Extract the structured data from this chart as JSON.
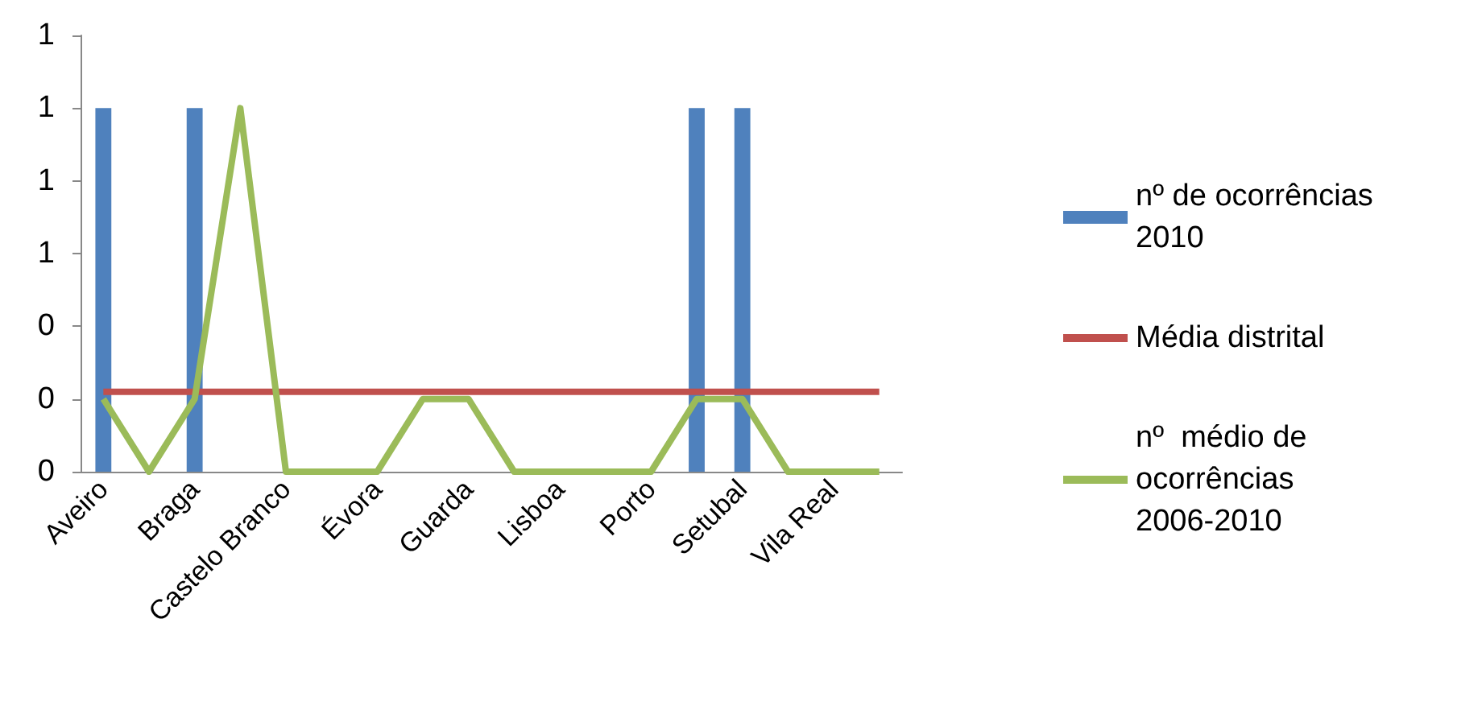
{
  "chart_data": {
    "type": "bar",
    "categories": [
      "Aveiro",
      null,
      "Braga",
      null,
      "Castelo Branco",
      null,
      "Évora",
      null,
      "Guarda",
      null,
      "Lisboa",
      null,
      "Porto",
      null,
      "Setubal",
      null,
      "Vila Real",
      null
    ],
    "series": [
      {
        "name": "nº de ocorrências 2010",
        "color": "#4f81bd",
        "values": [
          1,
          0,
          1,
          0,
          0,
          0,
          0,
          0,
          0,
          0,
          0,
          0,
          0,
          1,
          1,
          0,
          0,
          0
        ]
      },
      {
        "name": "Média distrital",
        "type": "line",
        "color": "#c0504d",
        "values": [
          0.22,
          0.22,
          0.22,
          0.22,
          0.22,
          0.22,
          0.22,
          0.22,
          0.22,
          0.22,
          0.22,
          0.22,
          0.22,
          0.22,
          0.22,
          0.22,
          0.22,
          0.22
        ]
      },
      {
        "name": "nº  médio de ocorrências 2006-2010",
        "type": "line",
        "color": "#9bbb59",
        "values": [
          0.2,
          0,
          0.2,
          1,
          0,
          0,
          0,
          0.2,
          0.2,
          0,
          0,
          0,
          0,
          0.2,
          0.2,
          0,
          0,
          0
        ]
      }
    ],
    "ylim": [
      0,
      1.2
    ],
    "yticks": [
      {
        "value": 0,
        "label": "0"
      },
      {
        "value": 0.2,
        "label": "0"
      },
      {
        "value": 0.4,
        "label": "0"
      },
      {
        "value": 0.6,
        "label": "1"
      },
      {
        "value": 0.8,
        "label": "1"
      },
      {
        "value": 1,
        "label": "1"
      },
      {
        "value": 1.2,
        "label": "1"
      }
    ],
    "grid": false,
    "legend": "right",
    "marker": "none"
  }
}
